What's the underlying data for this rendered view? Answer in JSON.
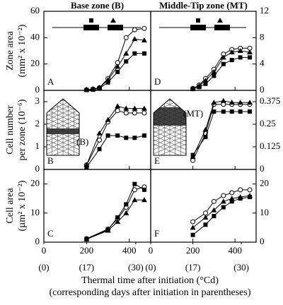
{
  "figure": {
    "xlabel": [
      "Thermal time after initiation (°Cd)",
      "(corresponding days after initiation in parentheses)"
    ]
  },
  "chart_data": [
    {
      "type": "line",
      "title": "Base zone (B)",
      "panel": "A",
      "ylabel": [
        "Zone area",
        "(mm² x 10⁻²)"
      ],
      "x": [
        200,
        230,
        260,
        300,
        345,
        385,
        425,
        470
      ],
      "xlim": [
        0,
        500
      ],
      "ylim": [
        0,
        60
      ],
      "yticks": [
        0,
        20,
        40,
        60
      ],
      "series": [
        {
          "marker": "circle-open",
          "color": "#000000",
          "values": [
            0.5,
            1,
            2,
            9,
            21,
            40,
            46,
            47
          ]
        },
        {
          "marker": "triangle",
          "color": "#000000",
          "values": [
            0.5,
            1,
            2,
            8,
            18,
            28,
            39,
            38
          ]
        },
        {
          "marker": "square",
          "color": "#000000",
          "values": [
            0.3,
            0.5,
            1.5,
            6,
            14,
            22,
            28,
            28
          ]
        }
      ]
    },
    {
      "type": "line",
      "panel": "B",
      "ylabel": [
        "Cell number",
        "per zone (10⁻⁶)"
      ],
      "inset_label": "(B)",
      "x": [
        200,
        260,
        300,
        345,
        385,
        425,
        470
      ],
      "xlim": [
        0,
        500
      ],
      "ylim": [
        0,
        3.5
      ],
      "yticks": [
        0,
        1,
        2,
        3
      ],
      "series": [
        {
          "marker": "circle-open",
          "color": "#000000",
          "values": [
            0.2,
            1.3,
            2.1,
            2.6,
            2.5,
            2.5,
            2.5
          ]
        },
        {
          "marker": "triangle",
          "color": "#000000",
          "values": [
            0.2,
            1.6,
            2.2,
            2.8,
            2.7,
            2.7,
            2.7
          ]
        },
        {
          "marker": "square",
          "color": "#000000",
          "values": [
            0.1,
            0.9,
            1.5,
            1.5,
            1.4,
            1.4,
            1.5
          ]
        }
      ]
    },
    {
      "type": "line",
      "panel": "C",
      "ylabel": [
        "Cell area",
        "(µm² x 10⁻²)"
      ],
      "x": [
        200,
        300,
        345,
        385,
        425,
        470
      ],
      "xlim": [
        0,
        500
      ],
      "ylim": [
        0,
        25
      ],
      "yticks": [
        0,
        10,
        20
      ],
      "xticks": [
        0,
        200,
        400
      ],
      "xticks2": [
        {
          "value": 0,
          "label": "(0)"
        },
        {
          "value": 200,
          "label": "(17)"
        },
        {
          "value": 430,
          "label": "(30)"
        }
      ],
      "series": [
        {
          "marker": "circle-open",
          "color": "#000000",
          "values": [
            1.2,
            4.5,
            8,
            12,
            18,
            19
          ]
        },
        {
          "marker": "triangle",
          "color": "#000000",
          "values": [
            1.0,
            4,
            7,
            10,
            14.5,
            14.5
          ]
        },
        {
          "marker": "square",
          "color": "#000000",
          "values": [
            1.1,
            4.3,
            8.5,
            13,
            20,
            18
          ]
        }
      ]
    },
    {
      "type": "line",
      "title": "Middle-Tip zone (MT)",
      "panel": "D",
      "x": [
        200,
        230,
        260,
        300,
        345,
        385,
        425,
        470
      ],
      "xlim": [
        0,
        500
      ],
      "ylim": [
        0,
        12
      ],
      "yticks": [
        0,
        4,
        8,
        12
      ],
      "series": [
        {
          "marker": "circle-open",
          "color": "#000000",
          "values": [
            0.3,
            0.8,
            1.8,
            3.2,
            5.5,
            6.2,
            6.4,
            6.4
          ]
        },
        {
          "marker": "triangle",
          "color": "#000000",
          "values": [
            0.3,
            0.7,
            1.5,
            2.8,
            5,
            5.8,
            6,
            5.8
          ]
        },
        {
          "marker": "square",
          "color": "#000000",
          "values": [
            0.2,
            0.5,
            1,
            2.2,
            4,
            4.6,
            5,
            5
          ]
        }
      ]
    },
    {
      "type": "line",
      "panel": "E",
      "inset_label": "(MT)",
      "x": [
        200,
        260,
        300,
        345,
        385,
        425,
        470
      ],
      "xlim": [
        0,
        500
      ],
      "ylim": [
        0,
        0.4375
      ],
      "yticks": [
        0,
        0.125,
        0.25,
        0.375
      ],
      "series": [
        {
          "marker": "circle-open",
          "color": "#000000",
          "values": [
            0.05,
            0.2,
            0.36,
            0.36,
            0.36,
            0.36,
            0.36
          ]
        },
        {
          "marker": "triangle",
          "color": "#000000",
          "values": [
            0.07,
            0.22,
            0.37,
            0.38,
            0.37,
            0.37,
            0.37
          ]
        },
        {
          "marker": "square",
          "color": "#000000",
          "values": [
            0.08,
            0.18,
            0.32,
            0.32,
            0.32,
            0.32,
            0.32
          ]
        }
      ]
    },
    {
      "type": "line",
      "panel": "F",
      "x": [
        200,
        260,
        300,
        345,
        385,
        425,
        470
      ],
      "xlim": [
        0,
        500
      ],
      "ylim": [
        0,
        25
      ],
      "yticks": [
        0,
        10,
        20
      ],
      "xticks": [
        0,
        200,
        400
      ],
      "xticks2": [
        {
          "value": 0,
          "label": "(0)"
        },
        {
          "value": 200,
          "label": "(17)"
        },
        {
          "value": 430,
          "label": "(30)"
        }
      ],
      "series": [
        {
          "marker": "circle-open",
          "color": "#000000",
          "values": [
            7,
            10,
            14,
            16,
            17,
            18,
            18
          ]
        },
        {
          "marker": "triangle",
          "color": "#000000",
          "values": [
            5,
            8.5,
            11,
            14,
            15,
            15.5,
            16
          ]
        },
        {
          "marker": "square",
          "color": "#000000",
          "values": [
            2.5,
            6,
            9,
            12,
            14,
            15,
            15.5
          ]
        }
      ]
    }
  ]
}
